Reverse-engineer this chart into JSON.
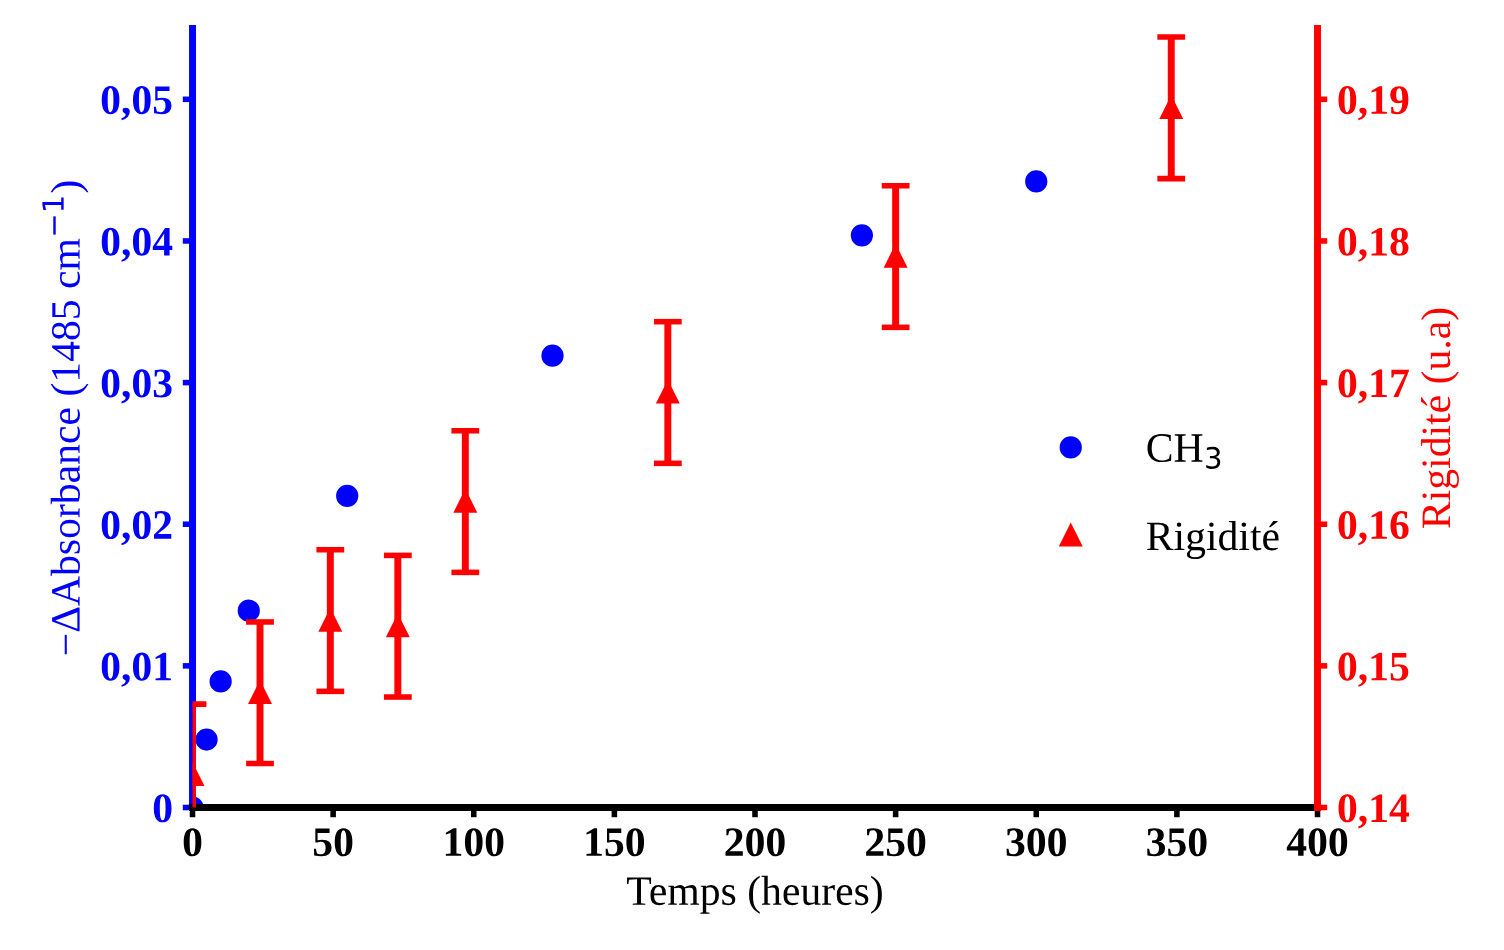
{
  "chart_data": {
    "type": "scatter",
    "xlabel": "Temps (heures)",
    "ylabel": "−ΔAbsorbance (1485 cm$^{−1}$)",
    "y2label": "Rigidité (u.a)",
    "xlim": [
      0,
      400
    ],
    "xticks": [
      0,
      50,
      100,
      150,
      200,
      250,
      300,
      350,
      400
    ],
    "ylim": [
      0,
      0.055
    ],
    "yticks": [
      {
        "value": 0,
        "label": "0"
      },
      {
        "value": 0.01,
        "label": "0,01"
      },
      {
        "value": 0.02,
        "label": "0,02"
      },
      {
        "value": 0.03,
        "label": "0,03"
      },
      {
        "value": 0.04,
        "label": "0,04"
      },
      {
        "value": 0.05,
        "label": "0,05"
      }
    ],
    "y2lim": [
      0.14,
      0.195
    ],
    "y2ticks": [
      {
        "value": 0.14,
        "label": "0,14"
      },
      {
        "value": 0.15,
        "label": "0,15"
      },
      {
        "value": 0.16,
        "label": "0,16"
      },
      {
        "value": 0.17,
        "label": "0,17"
      },
      {
        "value": 0.18,
        "label": "0,18"
      },
      {
        "value": 0.19,
        "label": "0,19"
      }
    ],
    "grid": false,
    "legend": "right",
    "series": [
      {
        "name": "CH$_{3}$",
        "color": "#0000ff",
        "marker": "circle",
        "x": [
          0,
          5,
          10,
          20,
          55,
          128,
          238,
          300
        ],
        "values": [
          0,
          0.0048,
          0.0089,
          0.0139,
          0.022,
          0.0319,
          0.0404,
          0.0442
        ]
      },
      {
        "name": "Rigidité",
        "color": "#ff0000",
        "marker": "triangle",
        "axis": "y2",
        "x": [
          0,
          24,
          49,
          73,
          97,
          169,
          250,
          348
        ],
        "values": [
          0.1423,
          0.1481,
          0.1532,
          0.1528,
          0.1616,
          0.1693,
          0.1789,
          0.1894
        ],
        "errors": [
          0.005,
          0.005,
          0.005,
          0.005,
          0.005,
          0.005,
          0.005,
          0.005
        ]
      }
    ]
  }
}
